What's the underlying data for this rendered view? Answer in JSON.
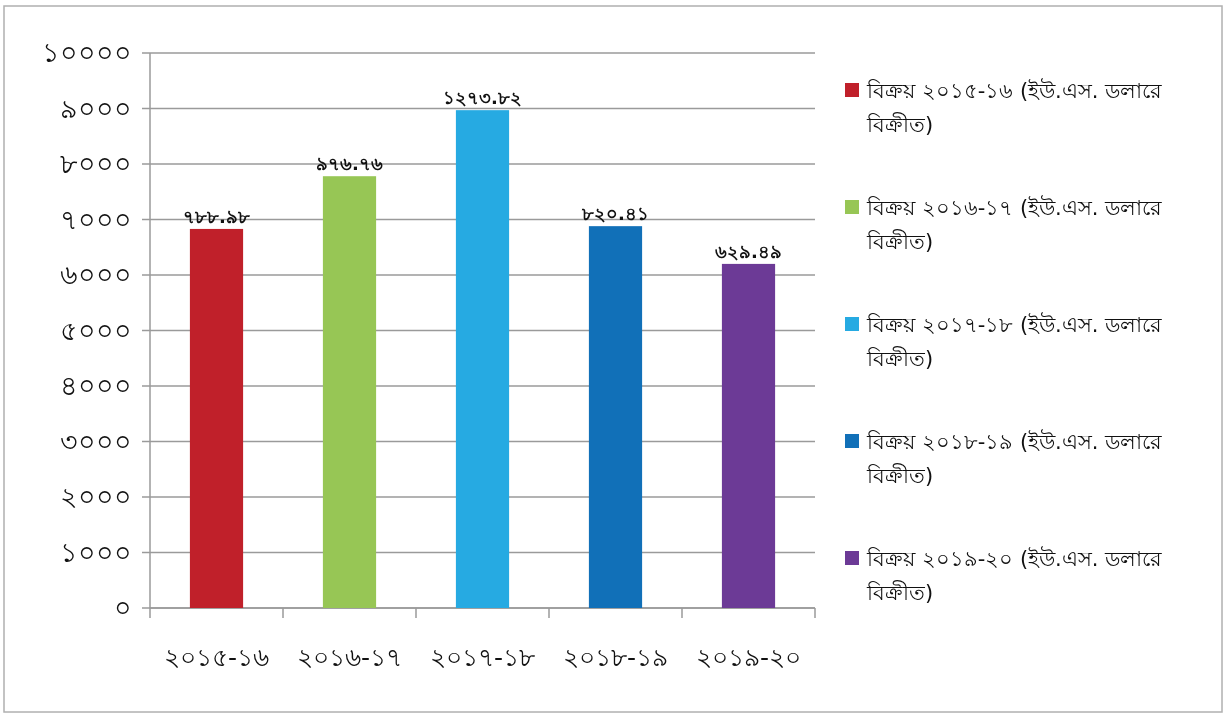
{
  "chart_data": {
    "type": "bar",
    "categories": [
      "২০১৫-১৬",
      "২০১৬-১৭",
      "২০১৭-১৮",
      "২০১৮-১৯",
      "২০১৯-২০"
    ],
    "series": [
      {
        "name": "বিক্রয় ২০১৫-১৬ (ইউ.এস. ডলারে বিক্রীত)",
        "color": "#c0202a",
        "values": [
          6830,
          null,
          null,
          null,
          null
        ]
      },
      {
        "name": "বিক্রয় ২০১৬-১৭ (ইউ.এস. ডলারে বিক্রীত)",
        "color": "#97c655",
        "values": [
          null,
          7780,
          null,
          null,
          null
        ]
      },
      {
        "name": "বিক্রয় ২০১৭-১৮ (ইউ.এস. ডলারে বিক্রীত)",
        "color": "#26aae2",
        "values": [
          null,
          null,
          8970,
          null,
          null
        ]
      },
      {
        "name": "বিক্রয় ২০১৮-১৯ (ইউ.এস. ডলারে বিক্রীত)",
        "color": "#1170b8",
        "values": [
          null,
          null,
          null,
          6880,
          null
        ]
      },
      {
        "name": "বিক্রয় ২০১৯-২০ (ইউ.এস. ডলারে বিক্রীত)",
        "color": "#6c3a96",
        "values": [
          null,
          null,
          null,
          null,
          6200
        ]
      }
    ],
    "annotations": [
      {
        "text": "৭৮৮.৯৮",
        "x": "২০১৫-১৬",
        "y": 6830
      },
      {
        "text": "৯৭৬.৭৬",
        "x": "২০১৬-১৭",
        "y": 7780
      },
      {
        "text": "১২৭৩.৮২",
        "x": "২০১৭-১৮",
        "y": 8970
      },
      {
        "text": "৮২০.৪১",
        "x": "২০১৮-১৯",
        "y": 6880
      },
      {
        "text": "৬২৯.৪৯",
        "x": "২০১৯-২০",
        "y": 6200
      }
    ],
    "ylim": [
      0,
      10000
    ],
    "yticks": [
      {
        "value": 0,
        "label": "০"
      },
      {
        "value": 1000,
        "label": "১০০০"
      },
      {
        "value": 2000,
        "label": "২০০০"
      },
      {
        "value": 3000,
        "label": "৩০০০"
      },
      {
        "value": 4000,
        "label": "৪০০০"
      },
      {
        "value": 5000,
        "label": "৫০০০"
      },
      {
        "value": 6000,
        "label": "৬০০০"
      },
      {
        "value": 7000,
        "label": "৭০০০"
      },
      {
        "value": 8000,
        "label": "৮০০০"
      },
      {
        "value": 9000,
        "label": "৯০০০"
      },
      {
        "value": 10000,
        "label": "১০০০০"
      }
    ],
    "grid": "y",
    "legend": "right"
  }
}
